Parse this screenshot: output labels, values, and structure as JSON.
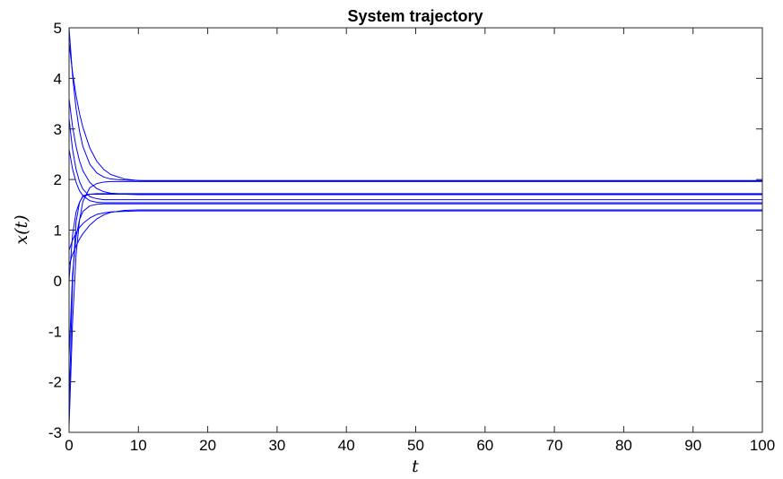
{
  "chart_data": {
    "type": "line",
    "title": "System trajectory",
    "xlabel": "t",
    "ylabel": "x(t)",
    "xlim": [
      0,
      100
    ],
    "ylim": [
      -3,
      5
    ],
    "xticks": [
      0,
      10,
      20,
      30,
      40,
      50,
      60,
      70,
      80,
      90,
      100
    ],
    "yticks": [
      -3,
      -2,
      -1,
      0,
      1,
      2,
      3,
      4,
      5
    ],
    "grid": false,
    "legend": "none",
    "line_color": "#0000ff",
    "x": [
      0,
      0.5,
      1,
      1.5,
      2,
      3,
      4,
      5,
      6,
      8,
      10,
      12,
      15,
      20,
      30,
      40,
      50,
      60,
      70,
      80,
      90,
      100
    ],
    "series": [
      {
        "values": [
          5.0,
          4.06,
          3.41,
          2.96,
          2.65,
          2.3,
          2.13,
          2.05,
          2.01,
          1.99,
          1.98,
          1.98,
          1.98,
          1.98,
          1.98,
          1.98,
          1.98,
          1.98,
          1.98,
          1.98,
          1.98,
          1.98
        ]
      },
      {
        "values": [
          4.7,
          4.12,
          3.67,
          3.31,
          3.03,
          2.62,
          2.36,
          2.2,
          2.1,
          2.01,
          1.98,
          1.97,
          1.97,
          1.97,
          1.97,
          1.97,
          1.97,
          1.97,
          1.97,
          1.97,
          1.97,
          1.97
        ]
      },
      {
        "values": [
          3.6,
          3.05,
          2.66,
          2.37,
          2.17,
          1.94,
          1.82,
          1.76,
          1.73,
          1.71,
          1.7,
          1.7,
          1.7,
          1.7,
          1.7,
          1.7,
          1.7,
          1.7,
          1.7,
          1.7,
          1.7,
          1.7
        ]
      },
      {
        "values": [
          3.2,
          2.6,
          2.21,
          1.96,
          1.81,
          1.66,
          1.62,
          1.6,
          1.6,
          1.6,
          1.6,
          1.6,
          1.6,
          1.6,
          1.6,
          1.6,
          1.6,
          1.6,
          1.6,
          1.6,
          1.6,
          1.6
        ]
      },
      {
        "values": [
          2.6,
          2.21,
          1.95,
          1.78,
          1.68,
          1.58,
          1.55,
          1.54,
          1.54,
          1.54,
          1.54,
          1.54,
          1.54,
          1.54,
          1.54,
          1.54,
          1.54,
          1.54,
          1.54,
          1.54,
          1.54,
          1.54
        ]
      },
      {
        "values": [
          -2.9,
          -0.84,
          0.49,
          1.19,
          1.57,
          1.84,
          1.92,
          1.95,
          1.96,
          1.96,
          1.96,
          1.96,
          1.96,
          1.96,
          1.96,
          1.96,
          1.96,
          1.96,
          1.96,
          1.96,
          1.96,
          1.96
        ]
      },
      {
        "values": [
          -2.5,
          -0.04,
          1.15,
          1.54,
          1.68,
          1.71,
          1.71,
          1.71,
          1.71,
          1.71,
          1.71,
          1.71,
          1.71,
          1.71,
          1.71,
          1.71,
          1.71,
          1.71,
          1.71,
          1.71,
          1.71,
          1.71
        ]
      },
      {
        "values": [
          0.0,
          0.9,
          1.35,
          1.55,
          1.66,
          1.71,
          1.72,
          1.72,
          1.72,
          1.72,
          1.72,
          1.72,
          1.72,
          1.72,
          1.72,
          1.72,
          1.72,
          1.72,
          1.72,
          1.72,
          1.72,
          1.72
        ]
      },
      {
        "values": [
          -1.5,
          0.12,
          0.86,
          1.2,
          1.37,
          1.48,
          1.51,
          1.52,
          1.52,
          1.52,
          1.52,
          1.52,
          1.52,
          1.52,
          1.52,
          1.52,
          1.52,
          1.52,
          1.52,
          1.52,
          1.52,
          1.52
        ]
      },
      {
        "values": [
          0.3,
          0.52,
          0.68,
          0.82,
          0.93,
          1.1,
          1.22,
          1.3,
          1.35,
          1.39,
          1.4,
          1.4,
          1.4,
          1.4,
          1.4,
          1.4,
          1.4,
          1.4,
          1.4,
          1.4,
          1.4,
          1.4
        ]
      },
      {
        "values": [
          0.6,
          0.8,
          0.94,
          1.05,
          1.13,
          1.24,
          1.31,
          1.34,
          1.36,
          1.37,
          1.38,
          1.38,
          1.38,
          1.38,
          1.38,
          1.38,
          1.38,
          1.38,
          1.38,
          1.38,
          1.38,
          1.38
        ]
      }
    ]
  }
}
